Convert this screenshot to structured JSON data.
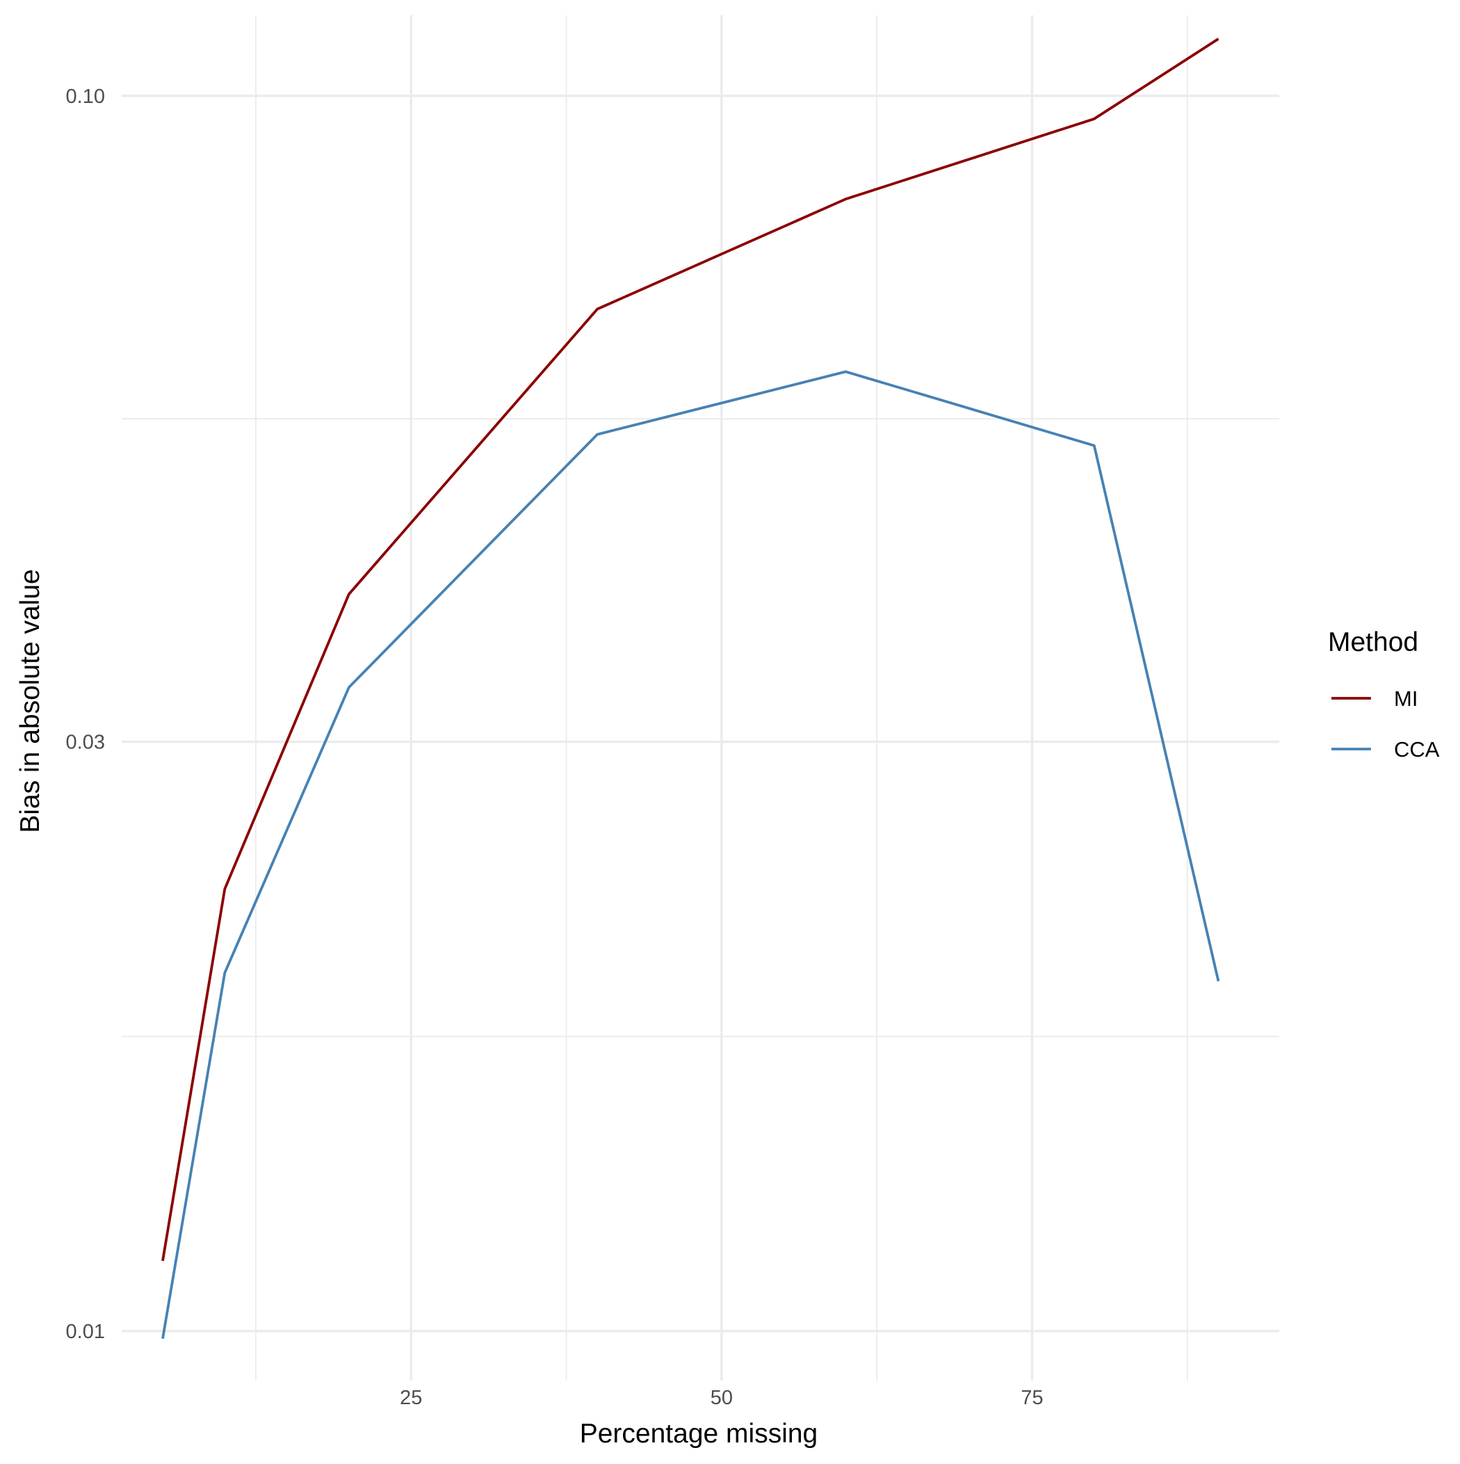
{
  "chart_data": {
    "type": "line",
    "title": "",
    "xlabel": "Percentage missing",
    "ylabel": "Bias in absolute value",
    "x_scale": "linear",
    "y_scale": "log10",
    "xlim": [
      1.7,
      94.9
    ],
    "ylim": [
      0.00912,
      0.1162
    ],
    "x_ticks": [
      {
        "value": 25,
        "label": "25"
      },
      {
        "value": 50,
        "label": "50"
      },
      {
        "value": 75,
        "label": "75"
      }
    ],
    "x_minor_ticks": [
      12.5,
      37.5,
      62.5,
      87.5
    ],
    "y_ticks": [
      {
        "value": 0.01,
        "label": "0.01"
      },
      {
        "value": 0.03,
        "label": "0.03"
      },
      {
        "value": 0.1,
        "label": "0.10"
      }
    ],
    "y_minor_ticks": [
      0.01732,
      0.05477
    ],
    "grid": true,
    "legend": {
      "title": "Method",
      "position": "right"
    },
    "series": [
      {
        "name": "MI",
        "color": "#8B0000",
        "x": [
          5,
          10,
          20,
          40,
          60,
          80,
          90
        ],
        "y": [
          0.0114,
          0.0228,
          0.0395,
          0.0672,
          0.0825,
          0.0958,
          0.1112
        ]
      },
      {
        "name": "CCA",
        "color": "#4682B4",
        "x": [
          5,
          10,
          20,
          40,
          60,
          80,
          90
        ],
        "y": [
          0.00986,
          0.0195,
          0.0332,
          0.0532,
          0.0598,
          0.0521,
          0.0192
        ]
      }
    ]
  }
}
